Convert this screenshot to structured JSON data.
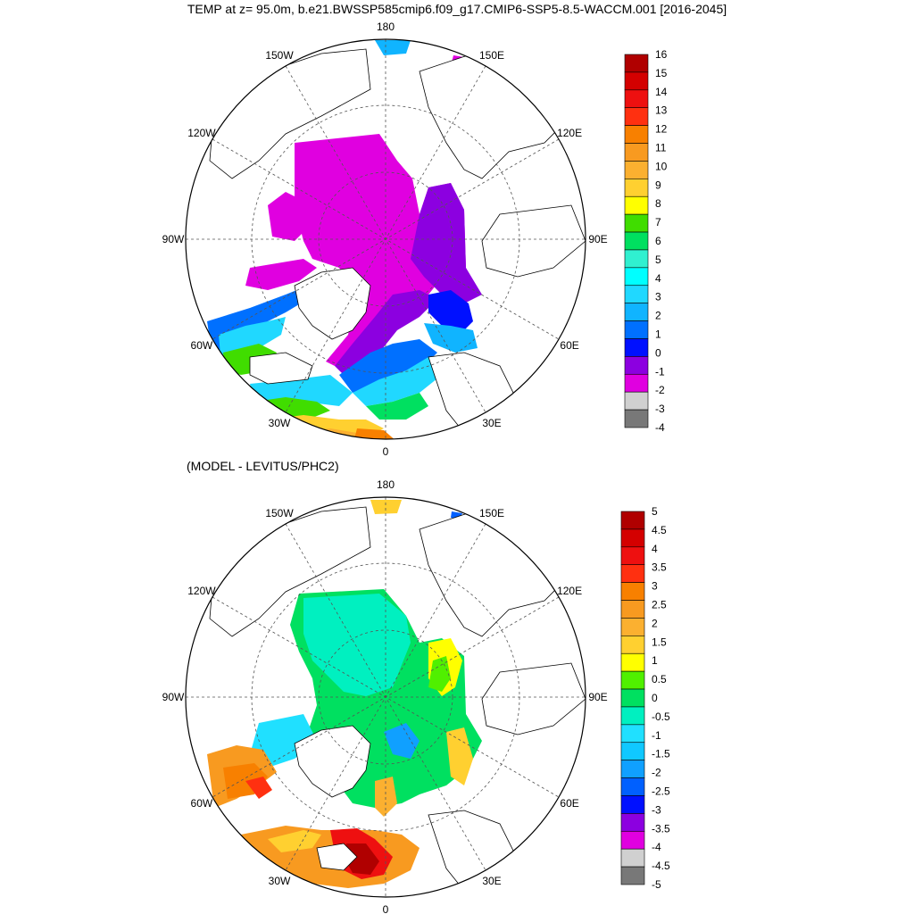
{
  "title": "TEMP at z=  95.0m, b.e21.BWSSP585cmip6.f09_g17.CMIP6-SSP5-8.5-WACCM.001 [2016-2045]",
  "subtitle": "(MODEL - LEVITUS/PHC2)",
  "lon_labels": [
    "180",
    "150E",
    "120E",
    "90E",
    "60E",
    "30E",
    "0",
    "30W",
    "60W",
    "90W",
    "120W",
    "150W"
  ],
  "maps": [
    {
      "name": "model-temperature-map",
      "colorbar": {
        "labels": [
          "16",
          "15",
          "14",
          "13",
          "12",
          "11",
          "10",
          "9",
          "8",
          "7",
          "6",
          "5",
          "4",
          "3",
          "2",
          "1",
          "0",
          "-1",
          "-2",
          "-3",
          "-4"
        ],
        "colors": [
          "#b00000",
          "#d40000",
          "#ee1010",
          "#ff3010",
          "#f88000",
          "#f89a20",
          "#fbb030",
          "#ffd030",
          "#ffff00",
          "#40dd00",
          "#00e060",
          "#30f0d0",
          "#00ffff",
          "#20d8ff",
          "#10b4ff",
          "#0070ff",
          "#0010ff",
          "#8c00e0",
          "#e000e0",
          "#d0d0d0",
          "#787878"
        ]
      }
    },
    {
      "name": "difference-map",
      "colorbar": {
        "labels": [
          "5",
          "4.5",
          "4",
          "3.5",
          "3",
          "2.5",
          "2",
          "1.5",
          "1",
          "0.5",
          "0",
          "-0.5",
          "-1",
          "-1.5",
          "-2",
          "-2.5",
          "-3",
          "-3.5",
          "-4",
          "-4.5",
          "-5"
        ],
        "colors": [
          "#b00000",
          "#d40000",
          "#ee1010",
          "#ff3010",
          "#f88000",
          "#f89a20",
          "#fbb030",
          "#ffd030",
          "#ffff00",
          "#50f000",
          "#00e060",
          "#00f0c0",
          "#20e0ff",
          "#10c8ff",
          "#10a0ff",
          "#0060ff",
          "#0010ff",
          "#8c00e0",
          "#e000e0",
          "#d0d0d0",
          "#787878"
        ]
      }
    }
  ]
}
